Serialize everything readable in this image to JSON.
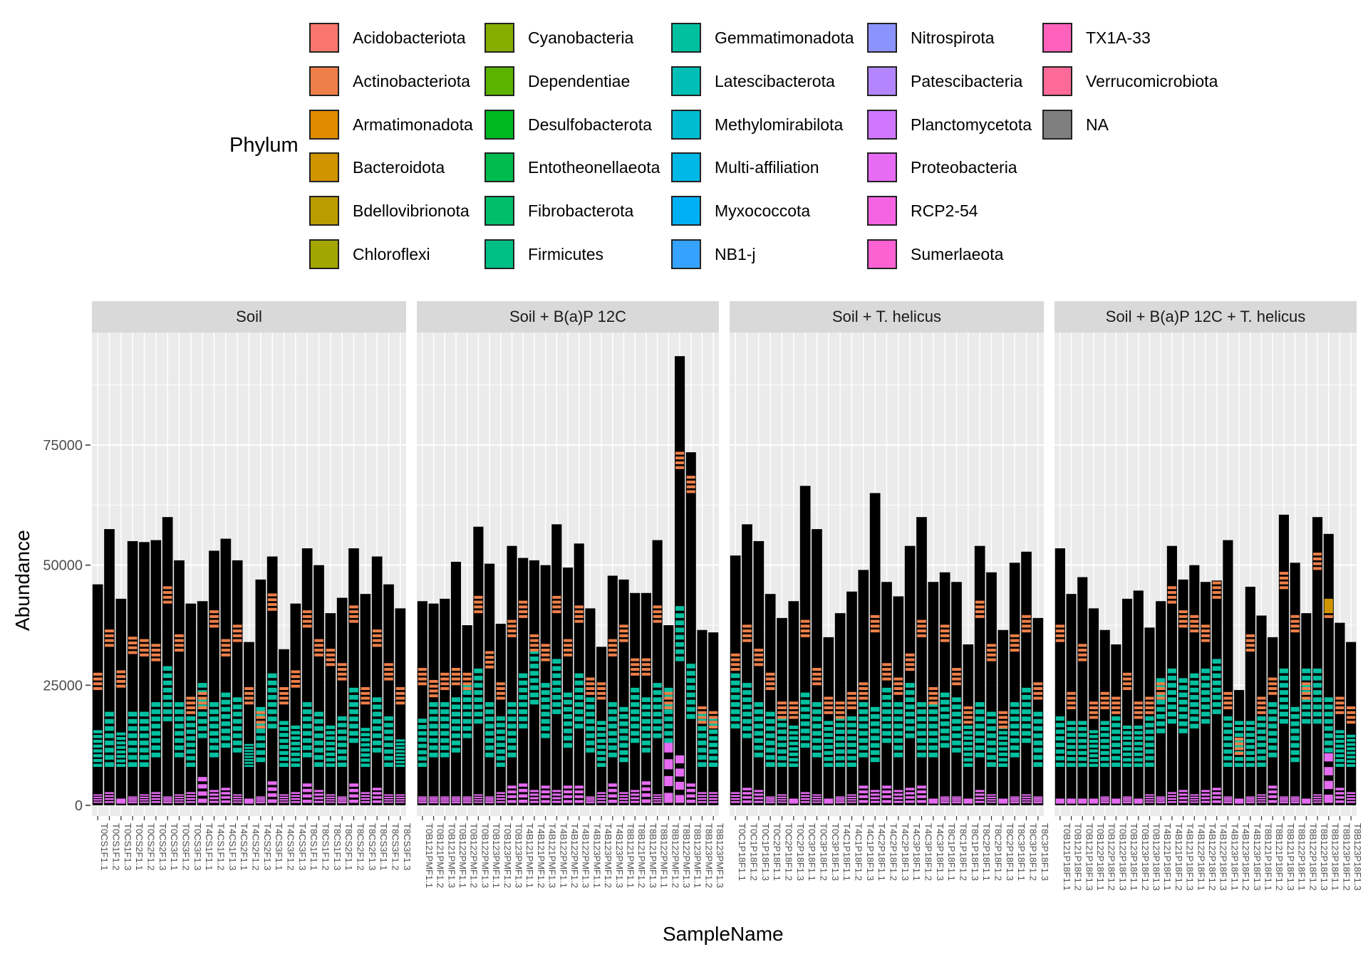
{
  "legend": {
    "title": "Phylum",
    "items": [
      {
        "name": "Acidobacteriota",
        "color": "#F8766D"
      },
      {
        "name": "Actinobacteriota",
        "color": "#EF7F49"
      },
      {
        "name": "Armatimonadota",
        "color": "#E08B00"
      },
      {
        "name": "Bacteroidota",
        "color": "#CF9400"
      },
      {
        "name": "Bdellovibrionota",
        "color": "#BB9C00"
      },
      {
        "name": "Chloroflexi",
        "color": "#A3A500"
      },
      {
        "name": "Cyanobacteria",
        "color": "#85AD00"
      },
      {
        "name": "Dependentiae",
        "color": "#5BB300"
      },
      {
        "name": "Desulfobacterota",
        "color": "#00B81F"
      },
      {
        "name": "Entotheonellaeota",
        "color": "#00BB4E"
      },
      {
        "name": "Fibrobacterota",
        "color": "#00BE6C"
      },
      {
        "name": "Firmicutes",
        "color": "#00BF87"
      },
      {
        "name": "Gemmatimonadota",
        "color": "#00C0A0"
      },
      {
        "name": "Latescibacterota",
        "color": "#00BFB7"
      },
      {
        "name": "Methylomirabilota",
        "color": "#00BCD2"
      },
      {
        "name": "Multi-affiliation",
        "color": "#00B8E7"
      },
      {
        "name": "Myxococcota",
        "color": "#00B0F6"
      },
      {
        "name": "NB1-j",
        "color": "#35A2FF"
      },
      {
        "name": "Nitrospirota",
        "color": "#8B93FF"
      },
      {
        "name": "Patescibacteria",
        "color": "#B386FF"
      },
      {
        "name": "Planctomycetota",
        "color": "#D177FF"
      },
      {
        "name": "Proteobacteria",
        "color": "#E76BF3"
      },
      {
        "name": "RCP2-54",
        "color": "#F564E3"
      },
      {
        "name": "Sumerlaeota",
        "color": "#FD61D2"
      },
      {
        "name": "TX1A-33",
        "color": "#FF62BC"
      },
      {
        "name": "Verrucomicrobiota",
        "color": "#FF6A98"
      },
      {
        "name": "NA",
        "color": "#7F7F7F"
      }
    ]
  },
  "axes": {
    "xlabel": "SampleName",
    "ylabel": "Abundance",
    "yticks": [
      "0",
      "25000",
      "50000",
      "75000"
    ]
  },
  "chart_data": {
    "type": "bar",
    "stacked": true,
    "ylim": [
      0,
      97000
    ],
    "grid": true,
    "legend_placement": "top",
    "series_colors": {
      "outline": "#000000",
      "Actinobacteriota": "#EF7F49",
      "Gemmatimonadota": "#00C0A0",
      "Proteobacteria": "#E76BF3",
      "Bacteroidota": "#CF9400",
      "NB1-j": "#35A2FF",
      "Planctomycetota": "#D177FF"
    },
    "facets": [
      {
        "strip": "Soil",
        "categories": [
          "T0CS1F1.1",
          "T0CS1F1.2",
          "T0CS1F1.3",
          "T0CS2F1.1",
          "T0CS2F1.2",
          "T0CS2F1.3",
          "T0CS3F1.1",
          "T0CS3F1.2",
          "T0CS3F1.3",
          "T4CS1F1.1",
          "T4CS1F1.2",
          "T4CS1F1.3",
          "T4CS2F1.1",
          "T4CS2F1.2",
          "T4CS2F1.3",
          "T4CS3F1.1",
          "T4CS3F1.2",
          "T4CS3F1.3",
          "T8CS1F1.1",
          "T8CS1F1.2",
          "T8CS1F1.3",
          "T8CS2F1.1",
          "T8CS2F1.2",
          "T8CS2F1.3",
          "T8CS3F1.1",
          "T8CS3F1.2",
          "T8CS3F1.3"
        ],
        "totals": [
          46000,
          57500,
          43000,
          55000,
          54800,
          55200,
          60000,
          51000,
          42000,
          42500,
          53000,
          55500,
          51000,
          34000,
          47000,
          51800,
          32500,
          42000,
          53500,
          50000,
          40000,
          43200,
          53500,
          44000,
          51800,
          46000,
          41000
        ],
        "actinobacteriota_top": [
          28000,
          37000,
          28500,
          35500,
          35000,
          34000,
          46000,
          36000,
          23000,
          24000,
          41000,
          35000,
          38000,
          25000,
          20000,
          44500,
          25000,
          28500,
          41000,
          35000,
          33000,
          30000,
          42000,
          25000,
          37000,
          30000,
          25000
        ],
        "gemmatimonadota_top": [
          16000,
          20000,
          15500,
          20000,
          20000,
          22000,
          29500,
          22000,
          19000,
          26000,
          22000,
          24000,
          23000,
          13000,
          21000,
          28000,
          18000,
          17000,
          22000,
          20000,
          17000,
          19000,
          25000,
          16500,
          23000,
          19000,
          14000
        ],
        "proteobacteria_top": [
          2500,
          3000,
          1500,
          2000,
          2500,
          3000,
          2000,
          2500,
          3000,
          6500,
          3500,
          4000,
          2500,
          1500,
          2000,
          5500,
          2500,
          3000,
          5000,
          3500,
          2500,
          2000,
          5000,
          3000,
          4000,
          2500,
          2500
        ]
      },
      {
        "strip": "Soil + B(a)P 12C",
        "categories": [
          "T0B121PMF1.1",
          "T0B121PMF1.2",
          "T0B121PMF1.3",
          "T0B122PMF1.1",
          "T0B122PMF1.2",
          "T0B122PMF1.3",
          "T0B123PMF1.1",
          "T0B123PMF1.2",
          "T0B123PMF1.3",
          "T4B121PMF1.1",
          "T4B121PMF1.2",
          "T4B121PMF1.3",
          "T4B122PMF1.1",
          "T4B122PMF1.2",
          "T4B122PMF1.3",
          "T4B123PMF1.1",
          "T4B123PMF1.2",
          "T4B123PMF1.3",
          "T8B121PMF1.1",
          "T8B121PMF1.2",
          "T8B121PMF1.3",
          "T8B122PMF1.1",
          "T8B122PMF1.2",
          "T8B122PMF1.3",
          "T8B123PMF1.1",
          "T8B123PMF1.2",
          "T8B123PMF1.3"
        ],
        "totals": [
          42500,
          42000,
          43000,
          50700,
          37500,
          58000,
          50300,
          37800,
          54000,
          51500,
          51000,
          50000,
          58500,
          49500,
          54500,
          41000,
          33000,
          47800,
          47000,
          44200,
          44200,
          55200,
          37500,
          93500,
          73500,
          36500,
          36000
        ],
        "actinobacteriota_top": [
          29000,
          26500,
          28000,
          29000,
          28000,
          44000,
          32500,
          26000,
          39000,
          43000,
          36000,
          34000,
          44000,
          35000,
          42000,
          27000,
          26000,
          35000,
          38000,
          31000,
          31000,
          42000,
          24000,
          74000,
          69000,
          21000,
          20000
        ],
        "gemmatimonadota_top": [
          18500,
          22000,
          22000,
          23000,
          26000,
          29000,
          22000,
          19000,
          22000,
          28000,
          33000,
          26000,
          31000,
          24000,
          28000,
          23000,
          18000,
          22000,
          21000,
          25000,
          23000,
          26000,
          25000,
          42000,
          30000,
          20000,
          19000
        ],
        "proteobacteria_top": [
          2000,
          2000,
          2000,
          2000,
          2000,
          2500,
          2000,
          3000,
          4500,
          5000,
          3500,
          4500,
          3500,
          4500,
          4500,
          2000,
          3000,
          5000,
          3000,
          3500,
          5500,
          2500,
          14500,
          11500,
          5000,
          3000,
          3000
        ]
      },
      {
        "strip": "Soil + T. helicus",
        "categories": [
          "T0C1P18F1.1",
          "T0C1P18F1.2",
          "T0C1P18F1.3",
          "T0C2P18F1.1",
          "T0C2P18F1.2",
          "T0C2P18F1.3",
          "T0C3P18F1.1",
          "T0C3P18F1.2",
          "T0C3P18F1.3",
          "T4C1P18F1.1",
          "T4C1P18F1.2",
          "T4C1P18F1.3",
          "T4C2P18F1.1",
          "T4C2P18F1.2",
          "T4C2P18F1.3",
          "T4C3P18F1.1",
          "T4C3P18F1.2",
          "T4C3P18F1.3",
          "T8C1P18F1.1",
          "T8C1P18F1.2",
          "T8C1P18F1.3",
          "T8C2P18F1.1",
          "T8C2P18F1.2",
          "T8C2P18F1.3",
          "T8C3P18F1.1",
          "T8C3P18F1.2",
          "T8C3P18F1.3"
        ],
        "totals": [
          52000,
          58500,
          55000,
          44000,
          39000,
          42500,
          66500,
          57500,
          35000,
          40000,
          44500,
          49000,
          65000,
          46500,
          43500,
          54000,
          60000,
          46500,
          48500,
          46500,
          33500,
          54000,
          48500,
          36500,
          50500,
          52800,
          39000
        ],
        "actinobacteriota_top": [
          32000,
          38000,
          33000,
          28000,
          22000,
          22000,
          39000,
          29000,
          23000,
          22000,
          24000,
          26000,
          40000,
          30000,
          27000,
          32000,
          39000,
          25000,
          38000,
          29000,
          21000,
          43000,
          34000,
          20000,
          36000,
          40000,
          26000
        ],
        "gemmatimonadota_top": [
          28000,
          26000,
          22000,
          20000,
          19000,
          17000,
          24000,
          22000,
          18000,
          19000,
          19000,
          22000,
          21000,
          25000,
          22000,
          26000,
          22000,
          22000,
          24000,
          23000,
          17000,
          22000,
          20000,
          17000,
          22000,
          25000,
          20000
        ],
        "proteobacteria_top": [
          3000,
          4000,
          3500,
          2000,
          2500,
          1500,
          3000,
          2500,
          1500,
          2000,
          2500,
          4500,
          3500,
          4500,
          3500,
          4000,
          4500,
          1500,
          2000,
          2000,
          1500,
          3500,
          2500,
          1500,
          2000,
          2500,
          2000
        ]
      },
      {
        "strip": "Soil + B(a)P 12C + T. helicus",
        "categories": [
          "T0B121P18F1.1",
          "T0B121P18F1.2",
          "T0B121P18F1.3",
          "T0B122P18F1.1",
          "T0B122P18F1.2",
          "T0B122P18F1.3",
          "T0B123P18F1.1",
          "T0B123P18F1.2",
          "T0B123P18F1.3",
          "T4B121P18F1.1",
          "T4B121P18F1.2",
          "T4B121P18F1.3",
          "T4B122P18F1.1",
          "T4B122P18F1.2",
          "T4B122P18F1.3",
          "T4B123P18F1.1",
          "T4B123P18F1.2",
          "T4B123P18F1.3",
          "T8B121P18F1.1",
          "T8B121P18F1.2",
          "T8B121P18F1.3",
          "T8B122P18F1.1",
          "T8B122P18F1.2",
          "T8B122P18F1.3",
          "T8B123P18F1.1",
          "T8B123P18F1.2",
          "T8B123P18F1.3"
        ],
        "totals": [
          53500,
          44000,
          47500,
          41000,
          36500,
          33500,
          43000,
          44700,
          37000,
          42500,
          54000,
          47000,
          50000,
          46500,
          46800,
          55200,
          24000,
          45500,
          39500,
          35000,
          60500,
          50500,
          40000,
          60000,
          56500,
          38000,
          34000
        ],
        "actinobacteriota_top": [
          38000,
          24000,
          34000,
          22000,
          24000,
          23000,
          28000,
          22000,
          23000,
          26000,
          46000,
          41000,
          40000,
          38000,
          47000,
          24000,
          14500,
          36000,
          23000,
          27000,
          49000,
          40000,
          26000,
          53000,
          43000,
          23000,
          21000
        ],
        "gemmatimonadota_top": [
          19000,
          18000,
          18000,
          16000,
          18000,
          19000,
          17000,
          17000,
          19000,
          27000,
          29000,
          27000,
          28000,
          29000,
          31000,
          19000,
          18000,
          18000,
          19000,
          22000,
          29000,
          21000,
          29000,
          29000,
          23000,
          16000,
          15000
        ],
        "proteobacteria_top": [
          1500,
          1500,
          1500,
          1500,
          2000,
          1500,
          2000,
          1500,
          2500,
          2000,
          3000,
          3500,
          2500,
          3500,
          4000,
          2000,
          1500,
          2000,
          2500,
          4500,
          2000,
          2000,
          1500,
          2500,
          12000,
          4000,
          3000
        ]
      }
    ]
  }
}
